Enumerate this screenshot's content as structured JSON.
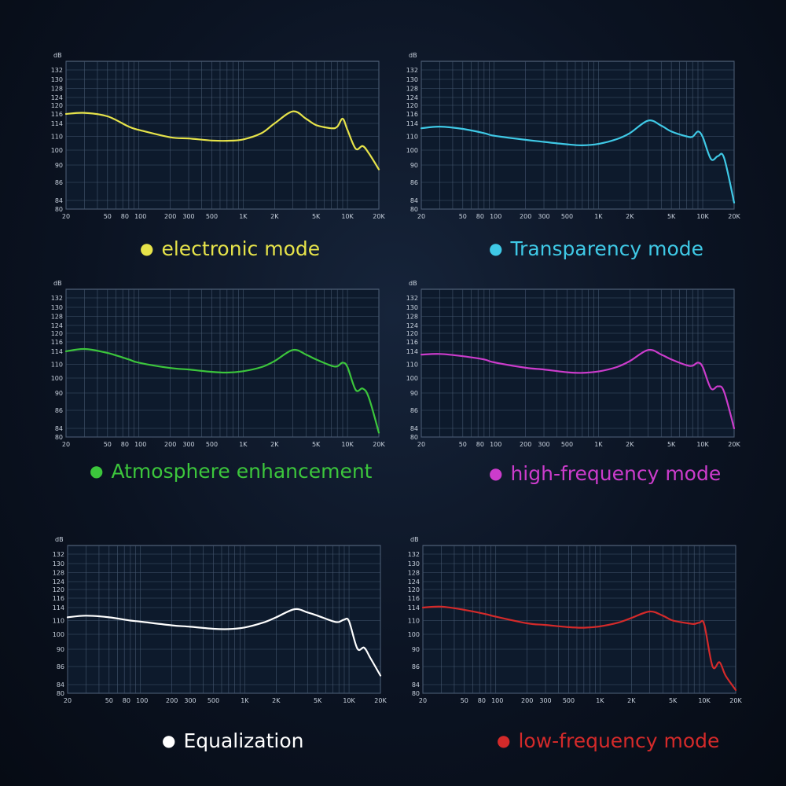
{
  "chart_data": [
    {
      "type": "line",
      "title": "electronic mode",
      "color": "#e6e34a",
      "ylabel": "dB",
      "x_ticks": [
        "20",
        "50",
        "80",
        "100",
        "200",
        "300",
        "500",
        "1K",
        "2K",
        "5K",
        "10K",
        "20K"
      ],
      "y_ticks": [
        "132",
        "130",
        "128",
        "124",
        "120",
        "116",
        "114",
        "110",
        "100",
        "90",
        "86",
        "84",
        "80"
      ],
      "x": [
        "20",
        "30",
        "50",
        "80",
        "100",
        "200",
        "300",
        "500",
        "700",
        "1K",
        "1.5K",
        "2K",
        "3K",
        "4K",
        "5K",
        "7K",
        "8K",
        "9K",
        "10K",
        "12K",
        "14K",
        "16K",
        "20K"
      ],
      "y": [
        116,
        116.5,
        115.5,
        113,
        112,
        109.3,
        108.5,
        107,
        106.8,
        107.8,
        111,
        114,
        117.2,
        115,
        113.5,
        112.5,
        113,
        115,
        112,
        101,
        103,
        98,
        89
      ]
    },
    {
      "type": "line",
      "title": "Transparency mode",
      "color": "#3fc9e6",
      "ylabel": "dB",
      "x_ticks": [
        "20",
        "50",
        "80",
        "100",
        "200",
        "300",
        "500",
        "1K",
        "2K",
        "5K",
        "10K",
        "20K"
      ],
      "y_ticks": [
        "132",
        "130",
        "128",
        "124",
        "120",
        "116",
        "114",
        "110",
        "100",
        "90",
        "86",
        "84",
        "80"
      ],
      "x": [
        "20",
        "30",
        "50",
        "80",
        "100",
        "200",
        "300",
        "500",
        "700",
        "1K",
        "1.5K",
        "2K",
        "3K",
        "4K",
        "5K",
        "7K",
        "8K",
        "9K",
        "10K",
        "12K",
        "14K",
        "16K",
        "20K"
      ],
      "y": [
        112.5,
        113,
        112.3,
        111,
        110.2,
        107.5,
        106,
        104.2,
        103.5,
        104.5,
        108,
        111,
        114.6,
        113.3,
        111.5,
        110,
        109.8,
        111.5,
        109.5,
        94,
        96,
        95,
        83
      ]
    },
    {
      "type": "line",
      "title": "Atmosphere enhancement",
      "color": "#3cc63c",
      "ylabel": "dB",
      "x_ticks": [
        "20",
        "50",
        "80",
        "100",
        "200",
        "300",
        "500",
        "1K",
        "2K",
        "5K",
        "10K",
        "20K"
      ],
      "y_ticks": [
        "132",
        "130",
        "128",
        "124",
        "120",
        "116",
        "114",
        "110",
        "100",
        "90",
        "86",
        "84",
        "80"
      ],
      "x": [
        "20",
        "30",
        "50",
        "80",
        "100",
        "200",
        "300",
        "500",
        "700",
        "1K",
        "1.5K",
        "2K",
        "3K",
        "4K",
        "5K",
        "7K",
        "8K",
        "9K",
        "10K",
        "12K",
        "14K",
        "16K",
        "20K"
      ],
      "y": [
        114,
        114.5,
        113.5,
        111.5,
        110.5,
        107.3,
        106.2,
        104.5,
        104,
        105,
        108,
        111,
        114.3,
        113,
        111.5,
        109,
        108.6,
        110.5,
        108,
        92,
        93,
        89,
        82
      ]
    },
    {
      "type": "line",
      "title": "high-frequency mode",
      "color": "#cc3ccc",
      "ylabel": "dB",
      "x_ticks": [
        "20",
        "50",
        "80",
        "100",
        "200",
        "300",
        "500",
        "1K",
        "2K",
        "5K",
        "10K",
        "20K"
      ],
      "y_ticks": [
        "132",
        "130",
        "128",
        "124",
        "120",
        "116",
        "114",
        "110",
        "100",
        "90",
        "86",
        "84",
        "80"
      ],
      "x": [
        "20",
        "30",
        "50",
        "80",
        "100",
        "200",
        "300",
        "500",
        "700",
        "1K",
        "1.5K",
        "2K",
        "3K",
        "4K",
        "5K",
        "7K",
        "8K",
        "9K",
        "10K",
        "12K",
        "14K",
        "16K",
        "20K"
      ],
      "y": [
        113,
        113.2,
        112.5,
        111.5,
        110.6,
        107.5,
        106.2,
        104.2,
        103.8,
        104.8,
        108,
        111,
        114.3,
        113,
        111.5,
        109.3,
        109,
        110.5,
        108,
        93,
        94.5,
        91,
        84
      ]
    },
    {
      "type": "line",
      "title": "Equalization",
      "color": "#ffffff",
      "ylabel": "dB",
      "x_ticks": [
        "20",
        "50",
        "80",
        "100",
        "200",
        "300",
        "500",
        "1K",
        "2K",
        "5K",
        "10K",
        "20K"
      ],
      "y_ticks": [
        "132",
        "130",
        "128",
        "124",
        "120",
        "116",
        "114",
        "110",
        "100",
        "90",
        "86",
        "84",
        "80"
      ],
      "x": [
        "20",
        "30",
        "50",
        "80",
        "100",
        "200",
        "300",
        "500",
        "700",
        "1K",
        "1.5K",
        "2K",
        "3K",
        "4K",
        "5K",
        "7K",
        "8K",
        "9K",
        "10K",
        "12K",
        "14K",
        "16K",
        "20K"
      ],
      "y": [
        111,
        111.5,
        111,
        110,
        109.2,
        106.5,
        105.5,
        104,
        103.8,
        105,
        108.5,
        111,
        113.5,
        112.5,
        111.5,
        109.5,
        109,
        110.3,
        109.5,
        90.5,
        91,
        88,
        85
      ]
    },
    {
      "type": "line",
      "title": "low-frequency mode",
      "color": "#d42a2a",
      "ylabel": "dB",
      "x_ticks": [
        "20",
        "50",
        "80",
        "100",
        "200",
        "300",
        "500",
        "1K",
        "2K",
        "5K",
        "10K",
        "20K"
      ],
      "y_ticks": [
        "132",
        "130",
        "128",
        "124",
        "120",
        "116",
        "114",
        "110",
        "100",
        "90",
        "86",
        "84",
        "80"
      ],
      "x": [
        "20",
        "30",
        "50",
        "80",
        "100",
        "200",
        "300",
        "500",
        "700",
        "1K",
        "1.5K",
        "2K",
        "3K",
        "4K",
        "5K",
        "7K",
        "8K",
        "9K",
        "10K",
        "12K",
        "14K",
        "16K",
        "20K"
      ],
      "y": [
        114,
        114.2,
        113.3,
        112,
        111.2,
        108,
        106.8,
        105.2,
        104.8,
        105.8,
        108.5,
        110.8,
        112.8,
        111.5,
        110,
        108,
        107.5,
        108.5,
        107,
        86,
        87,
        85,
        81.5
      ]
    }
  ]
}
